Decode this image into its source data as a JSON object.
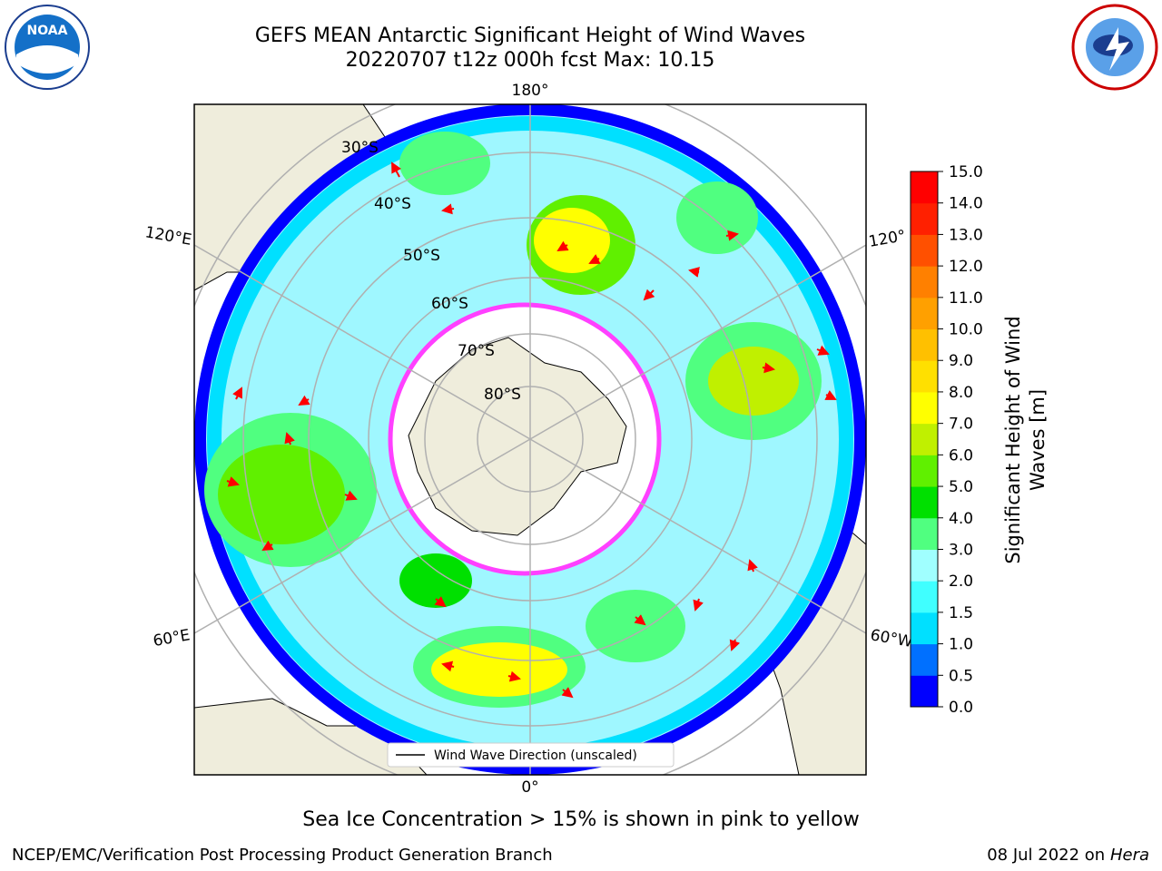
{
  "title": {
    "line1": "GEFS MEAN Antarctic Significant Height of Wind Waves",
    "line2": "20220707 t12z 000h fcst   Max: 10.15"
  },
  "lon_labels": {
    "top": "180°",
    "bottom": "0°",
    "left_upper": "120°E",
    "left_lower": "60°E",
    "right_upper": "120°",
    "right_lower": "60°W"
  },
  "lat_labels": [
    "30°S",
    "40°S",
    "50°S",
    "60°S",
    "70°S",
    "80°S"
  ],
  "legend": {
    "label": "Wind Wave Direction (unscaled)"
  },
  "colorbar": {
    "label_line1": "Significant Height of Wind",
    "label_line2": "Waves [m]",
    "ticks": [
      "0.0",
      "0.5",
      "1.0",
      "1.5",
      "2.0",
      "3.0",
      "4.0",
      "5.0",
      "6.0",
      "7.0",
      "8.0",
      "9.0",
      "10.0",
      "11.0",
      "12.0",
      "13.0",
      "14.0",
      "15.0"
    ],
    "colors": [
      "#0000ff",
      "#0070ff",
      "#00e0ff",
      "#40ffff",
      "#a0ffff",
      "#50ff80",
      "#00e000",
      "#60f000",
      "#c0f000",
      "#ffff00",
      "#ffe000",
      "#ffc000",
      "#ffa000",
      "#ff8000",
      "#ff5000",
      "#ff2000",
      "#ff0000"
    ]
  },
  "sea_ice_note": "Sea Ice Concentration > 15% is shown in pink to yellow",
  "footer": {
    "left": "NCEP/EMC/Verification Post Processing Product Generation Branch",
    "right_date": "08 Jul 2022 on ",
    "right_host": "Hera"
  },
  "logos": {
    "left": "NOAA",
    "right": "NATIONAL WEATHER SERVICE"
  },
  "colors": {
    "land": "#efeddc",
    "arrow": "#ff0000",
    "grid": "#b0b0b0",
    "ice_edge": "#ff40ff"
  }
}
